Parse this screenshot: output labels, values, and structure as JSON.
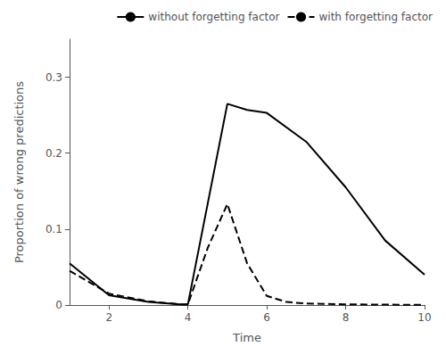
{
  "chart_data": {
    "type": "line",
    "xlabel": "Time",
    "ylabel": "Proportion of wrong predictions",
    "xlim": [
      1,
      10
    ],
    "ylim": [
      0,
      0.35
    ],
    "xticks": [
      2,
      4,
      6,
      8,
      10
    ],
    "yticks": [
      0,
      0.1,
      0.2,
      0.3
    ],
    "grid": false,
    "legend": "upper right",
    "series": [
      {
        "name": "without forgetting factor",
        "color": "#000000",
        "line_style": "solid",
        "x": [
          1,
          2,
          3,
          3.8,
          4.0,
          5.0,
          5.5,
          6.0,
          7.0,
          8.0,
          9.0,
          10.0
        ],
        "values": [
          0.055,
          0.013,
          0.004,
          0.001,
          0.001,
          0.265,
          0.257,
          0.253,
          0.215,
          0.155,
          0.085,
          0.04
        ]
      },
      {
        "name": "with forgetting factor",
        "color": "#000000",
        "line_style": "dashed",
        "x": [
          1,
          2,
          3,
          3.8,
          4.0,
          4.5,
          5.0,
          5.5,
          6.0,
          6.5,
          7.0,
          8.0,
          9.0,
          10.0
        ],
        "values": [
          0.045,
          0.015,
          0.005,
          0.001,
          0.001,
          0.075,
          0.133,
          0.055,
          0.012,
          0.004,
          0.002,
          0.001,
          0.0005,
          0.0003
        ]
      }
    ]
  }
}
